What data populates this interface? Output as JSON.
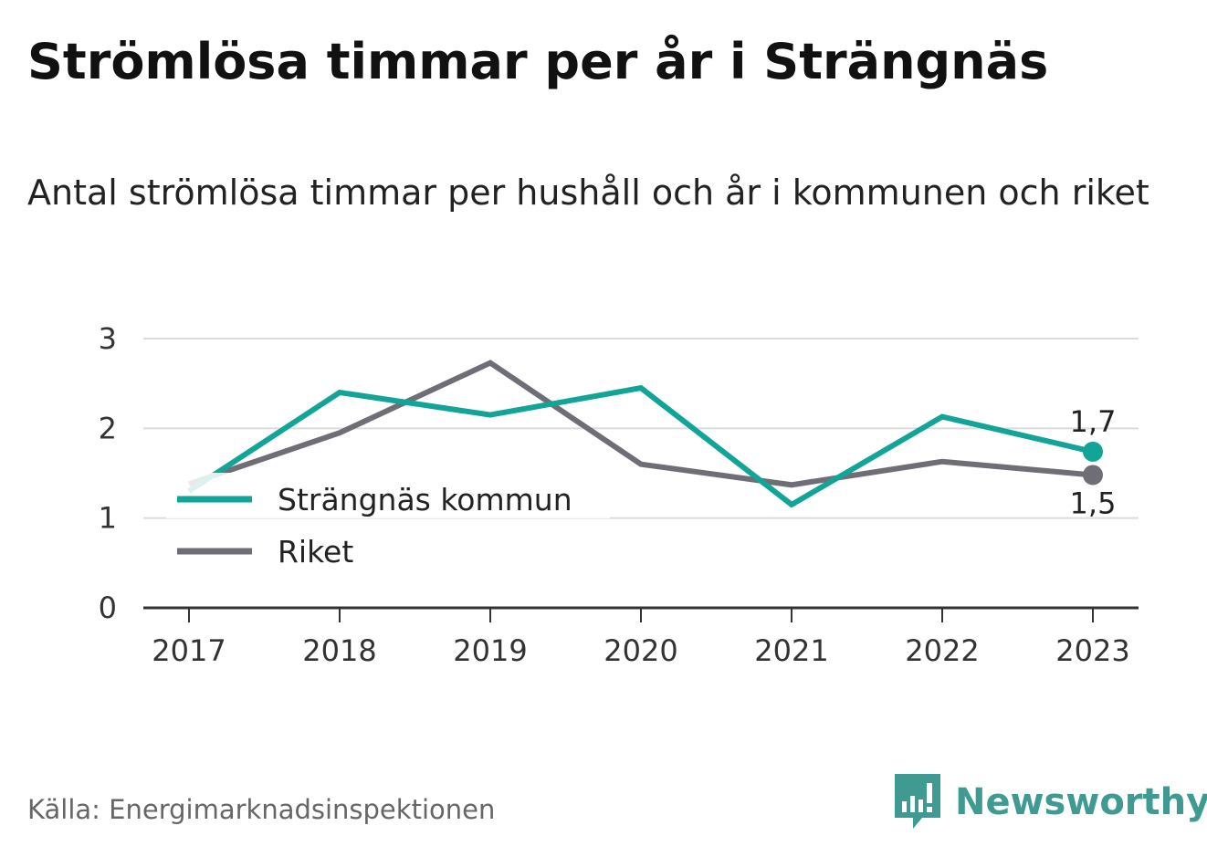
{
  "title": "Strömlösa timmar per år i Strängnäs",
  "subtitle": "Antal strömlösa timmar per hushåll och år i kommunen och riket",
  "source": "Källa: Energimarknadsinspektionen",
  "brand": {
    "name": "Newsworthy",
    "icon": "newsworthy-logo-icon",
    "color": "#3f9b91"
  },
  "chart_data": {
    "type": "line",
    "x": [
      "2017",
      "2018",
      "2019",
      "2020",
      "2021",
      "2022",
      "2023"
    ],
    "ylim": [
      0,
      3
    ],
    "yticks": [
      "0",
      "1",
      "2",
      "3"
    ],
    "grid": true,
    "legend_position": "lower-left",
    "series": [
      {
        "name": "Strängnäs kommun",
        "color": "#12a597",
        "values": [
          1.3,
          2.4,
          2.15,
          2.45,
          1.15,
          2.13,
          1.74
        ],
        "end_label": "1,7"
      },
      {
        "name": "Riket",
        "color": "#6f6e76",
        "values": [
          1.38,
          1.95,
          2.73,
          1.6,
          1.37,
          1.63,
          1.48
        ],
        "end_label": "1,5"
      }
    ]
  }
}
